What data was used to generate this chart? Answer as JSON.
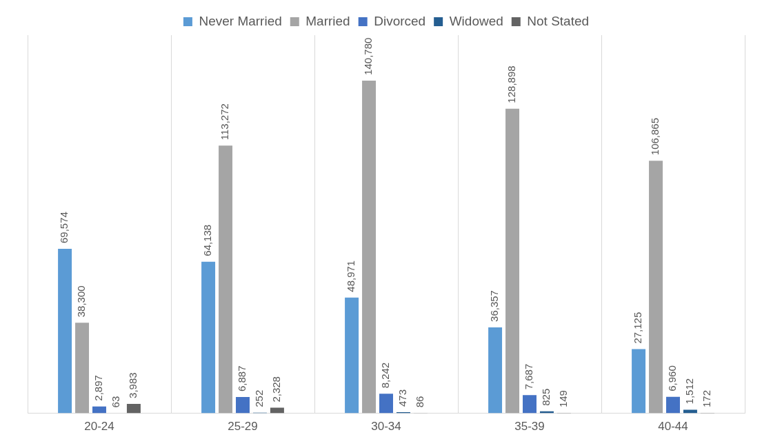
{
  "chart_data": {
    "type": "bar",
    "categories": [
      "20-24",
      "25-29",
      "30-34",
      "35-39",
      "40-44"
    ],
    "series": [
      {
        "name": "Never Married",
        "color": "#5b9bd5",
        "values": [
          69574,
          64138,
          48971,
          36357,
          27125
        ],
        "value_labels": [
          "69,574",
          "64,138",
          "48,971",
          "36,357",
          "27,125"
        ]
      },
      {
        "name": "Married",
        "color": "#a5a5a5",
        "values": [
          38300,
          113272,
          140780,
          128898,
          106865
        ],
        "value_labels": [
          "38,300",
          "113,272",
          "140,780",
          "128,898",
          "106,865"
        ]
      },
      {
        "name": "Divorced",
        "color": "#4472c4",
        "values": [
          2897,
          6887,
          8242,
          7687,
          6960
        ],
        "value_labels": [
          "2,897",
          "6,887",
          "8,242",
          "7,687",
          "6,960"
        ]
      },
      {
        "name": "Widowed",
        "color": "#255e91",
        "values": [
          63,
          252,
          473,
          825,
          1512
        ],
        "value_labels": [
          "63",
          "252",
          "473",
          "825",
          "1,512"
        ]
      },
      {
        "name": "Not Stated",
        "color": "#636363",
        "values": [
          3983,
          2328,
          86,
          149,
          172
        ],
        "value_labels": [
          "3,983",
          "2,328",
          "86",
          "149",
          "172"
        ]
      }
    ],
    "legend": "top",
    "grid": "x"
  }
}
